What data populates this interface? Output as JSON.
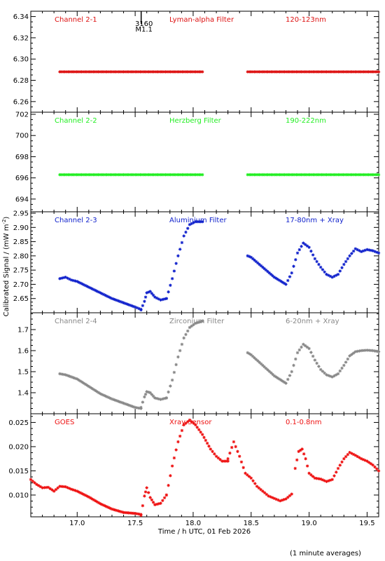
{
  "figure": {
    "ylabel": "Calibrated Signal / (mW m",
    "ylabel_sup": "-2",
    "ylabel_tail": ")",
    "xlabel": "Time / h UTC, 01 Feb 2026",
    "footnote": "(1 minute averages)",
    "x_ticks": [
      "17.0",
      "17.5",
      "18.0",
      "18.5",
      "19.0",
      "19.5"
    ],
    "xlim": [
      16.6,
      19.6
    ],
    "event_marker": {
      "x": 17.6,
      "label_top": "3160",
      "label_bottom": "M1.1",
      "color": "#000000"
    },
    "frame_color": "#000000"
  },
  "chart_data": [
    {
      "type": "scatter",
      "name_label": "Channel 2-1",
      "filter_label": "Lyman-alpha Filter",
      "band_label": "120-123nm",
      "color": "#dd1111",
      "ylim": [
        6.25,
        6.345
      ],
      "y_ticks": [
        "6.26",
        "6.28",
        "6.30",
        "6.32",
        "6.34"
      ],
      "y_tick_values": [
        6.26,
        6.28,
        6.3,
        6.32,
        6.34
      ],
      "segments": [
        {
          "x": [
            16.85,
            18.08
          ],
          "y": [
            6.288,
            6.288
          ]
        },
        {
          "x": [
            18.47,
            19.6
          ],
          "y": [
            6.288,
            6.288
          ]
        }
      ]
    },
    {
      "type": "scatter",
      "name_label": "Channel 2-2",
      "filter_label": "Herzberg Filter",
      "band_label": "190-222nm",
      "color": "#22ee22",
      "ylim": [
        692.8,
        702.2
      ],
      "y_ticks": [
        "694",
        "696",
        "698",
        "700",
        "702"
      ],
      "y_tick_values": [
        694,
        696,
        698,
        700,
        702
      ],
      "segments": [
        {
          "x": [
            16.85,
            18.08
          ],
          "y": [
            696.3,
            696.3
          ]
        },
        {
          "x": [
            18.47,
            19.6
          ],
          "y": [
            696.3,
            696.3
          ]
        }
      ]
    },
    {
      "type": "scatter",
      "name_label": "Channel 2-3",
      "filter_label": "Aluminium Filter",
      "band_label": "17-80nm + Xray",
      "color": "#1122cc",
      "ylim": [
        2.6,
        2.955
      ],
      "y_ticks": [
        "2.65",
        "2.70",
        "2.75",
        "2.80",
        "2.85",
        "2.90",
        "2.95"
      ],
      "y_tick_values": [
        2.65,
        2.7,
        2.75,
        2.8,
        2.85,
        2.9,
        2.95
      ],
      "segments": [
        {
          "x": [
            16.85,
            16.9,
            16.95,
            17.0,
            17.1,
            17.2,
            17.3,
            17.4,
            17.5,
            17.55
          ],
          "y": [
            2.72,
            2.725,
            2.715,
            2.71,
            2.69,
            2.67,
            2.65,
            2.635,
            2.62,
            2.612
          ]
        },
        {
          "x": [
            17.55,
            17.58,
            17.6,
            17.63,
            17.67,
            17.72,
            17.77
          ],
          "y": [
            2.61,
            2.64,
            2.67,
            2.675,
            2.655,
            2.645,
            2.65
          ]
        },
        {
          "x": [
            17.77,
            17.82,
            17.87,
            17.92,
            17.97,
            18.02,
            18.08
          ],
          "y": [
            2.65,
            2.72,
            2.8,
            2.87,
            2.91,
            2.92,
            2.92
          ]
        },
        {
          "x": [
            18.47,
            18.5,
            18.6,
            18.7,
            18.8,
            18.85,
            18.9,
            18.95,
            19.0,
            19.05,
            19.1,
            19.15,
            19.2,
            19.25,
            19.3,
            19.35,
            19.4,
            19.45,
            19.5,
            19.55,
            19.6
          ],
          "y": [
            2.8,
            2.795,
            2.76,
            2.725,
            2.7,
            2.74,
            2.81,
            2.845,
            2.83,
            2.79,
            2.76,
            2.735,
            2.725,
            2.735,
            2.77,
            2.8,
            2.825,
            2.815,
            2.822,
            2.818,
            2.81
          ]
        }
      ]
    },
    {
      "type": "scatter",
      "name_label": "Channel 2-4",
      "filter_label": "Zirconium Filter",
      "band_label": "6-20nm + Xray",
      "color": "#888888",
      "ylim": [
        1.3,
        1.78
      ],
      "y_ticks": [
        "1.4",
        "1.5",
        "1.6",
        "1.7"
      ],
      "y_tick_values": [
        1.4,
        1.5,
        1.6,
        1.7
      ],
      "segments": [
        {
          "x": [
            16.85,
            16.9,
            17.0,
            17.1,
            17.2,
            17.3,
            17.4,
            17.5,
            17.55
          ],
          "y": [
            1.49,
            1.485,
            1.465,
            1.43,
            1.395,
            1.37,
            1.35,
            1.33,
            1.325
          ]
        },
        {
          "x": [
            17.55,
            17.58,
            17.6,
            17.63,
            17.67,
            17.72,
            17.77
          ],
          "y": [
            1.33,
            1.38,
            1.405,
            1.4,
            1.375,
            1.368,
            1.375
          ]
        },
        {
          "x": [
            17.77,
            17.82,
            17.87,
            17.92,
            17.97,
            18.02,
            18.08
          ],
          "y": [
            1.375,
            1.46,
            1.57,
            1.66,
            1.71,
            1.73,
            1.74
          ]
        },
        {
          "x": [
            18.47,
            18.5,
            18.6,
            18.7,
            18.8,
            18.85,
            18.9,
            18.95,
            19.0,
            19.05,
            19.1,
            19.15,
            19.2,
            19.25,
            19.3,
            19.35,
            19.4,
            19.45,
            19.5,
            19.55,
            19.6
          ],
          "y": [
            1.59,
            1.58,
            1.53,
            1.48,
            1.445,
            1.5,
            1.59,
            1.63,
            1.61,
            1.555,
            1.51,
            1.485,
            1.475,
            1.49,
            1.53,
            1.575,
            1.595,
            1.6,
            1.602,
            1.6,
            1.595
          ]
        }
      ]
    },
    {
      "type": "scatter",
      "name_label": "GOES",
      "filter_label": "Xray Sensor",
      "band_label": "0.1-0.8nm",
      "color": "#ee1111",
      "ylim": [
        0.0055,
        0.0268
      ],
      "y_ticks": [
        "0.010",
        "0.015",
        "0.020",
        "0.025"
      ],
      "y_tick_values": [
        0.01,
        0.015,
        0.02,
        0.025
      ],
      "segments": [
        {
          "x": [
            16.6,
            16.65,
            16.7,
            16.75,
            16.8,
            16.85,
            16.9,
            16.95,
            17.0,
            17.1,
            17.2,
            17.3,
            17.4,
            17.5,
            17.55
          ],
          "y": [
            0.0132,
            0.0122,
            0.0115,
            0.0116,
            0.0108,
            0.0118,
            0.0117,
            0.0112,
            0.0108,
            0.0096,
            0.0082,
            0.0071,
            0.0064,
            0.0062,
            0.006
          ]
        },
        {
          "x": [
            17.55,
            17.58,
            17.6,
            17.63,
            17.67,
            17.72,
            17.77
          ],
          "y": [
            0.0058,
            0.0098,
            0.0115,
            0.0095,
            0.008,
            0.0083,
            0.01
          ]
        },
        {
          "x": [
            17.77,
            17.82,
            17.87,
            17.92,
            17.97,
            18.02,
            18.08,
            18.15,
            18.2,
            18.25,
            18.3
          ],
          "y": [
            0.01,
            0.016,
            0.021,
            0.0245,
            0.0255,
            0.0245,
            0.0225,
            0.0195,
            0.018,
            0.017,
            0.017
          ]
        },
        {
          "x": [
            18.3,
            18.35,
            18.4,
            18.45,
            18.5,
            18.55,
            18.6,
            18.65,
            18.7,
            18.75,
            18.8,
            18.85
          ],
          "y": [
            0.0175,
            0.021,
            0.018,
            0.0145,
            0.0135,
            0.0118,
            0.0108,
            0.0098,
            0.0093,
            0.0088,
            0.0092,
            0.0102
          ]
        },
        {
          "x": [
            18.88,
            18.91,
            18.94,
            18.97,
            19.0,
            19.05,
            19.1,
            19.15,
            19.2,
            19.25,
            19.3,
            19.35,
            19.4,
            19.45,
            19.5,
            19.55,
            19.6
          ],
          "y": [
            0.0155,
            0.019,
            0.0195,
            0.0175,
            0.0145,
            0.0135,
            0.0133,
            0.0128,
            0.0132,
            0.0155,
            0.0175,
            0.0188,
            0.0182,
            0.0175,
            0.017,
            0.0162,
            0.015
          ]
        }
      ]
    }
  ]
}
